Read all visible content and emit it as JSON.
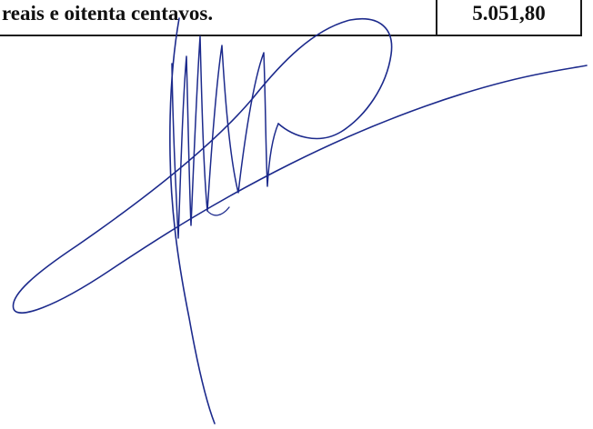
{
  "document": {
    "amount_in_words": "reais e oitenta centavos.",
    "amount_value": "5.051,80"
  },
  "signature": {
    "ink_color": "#1c2a8c"
  }
}
